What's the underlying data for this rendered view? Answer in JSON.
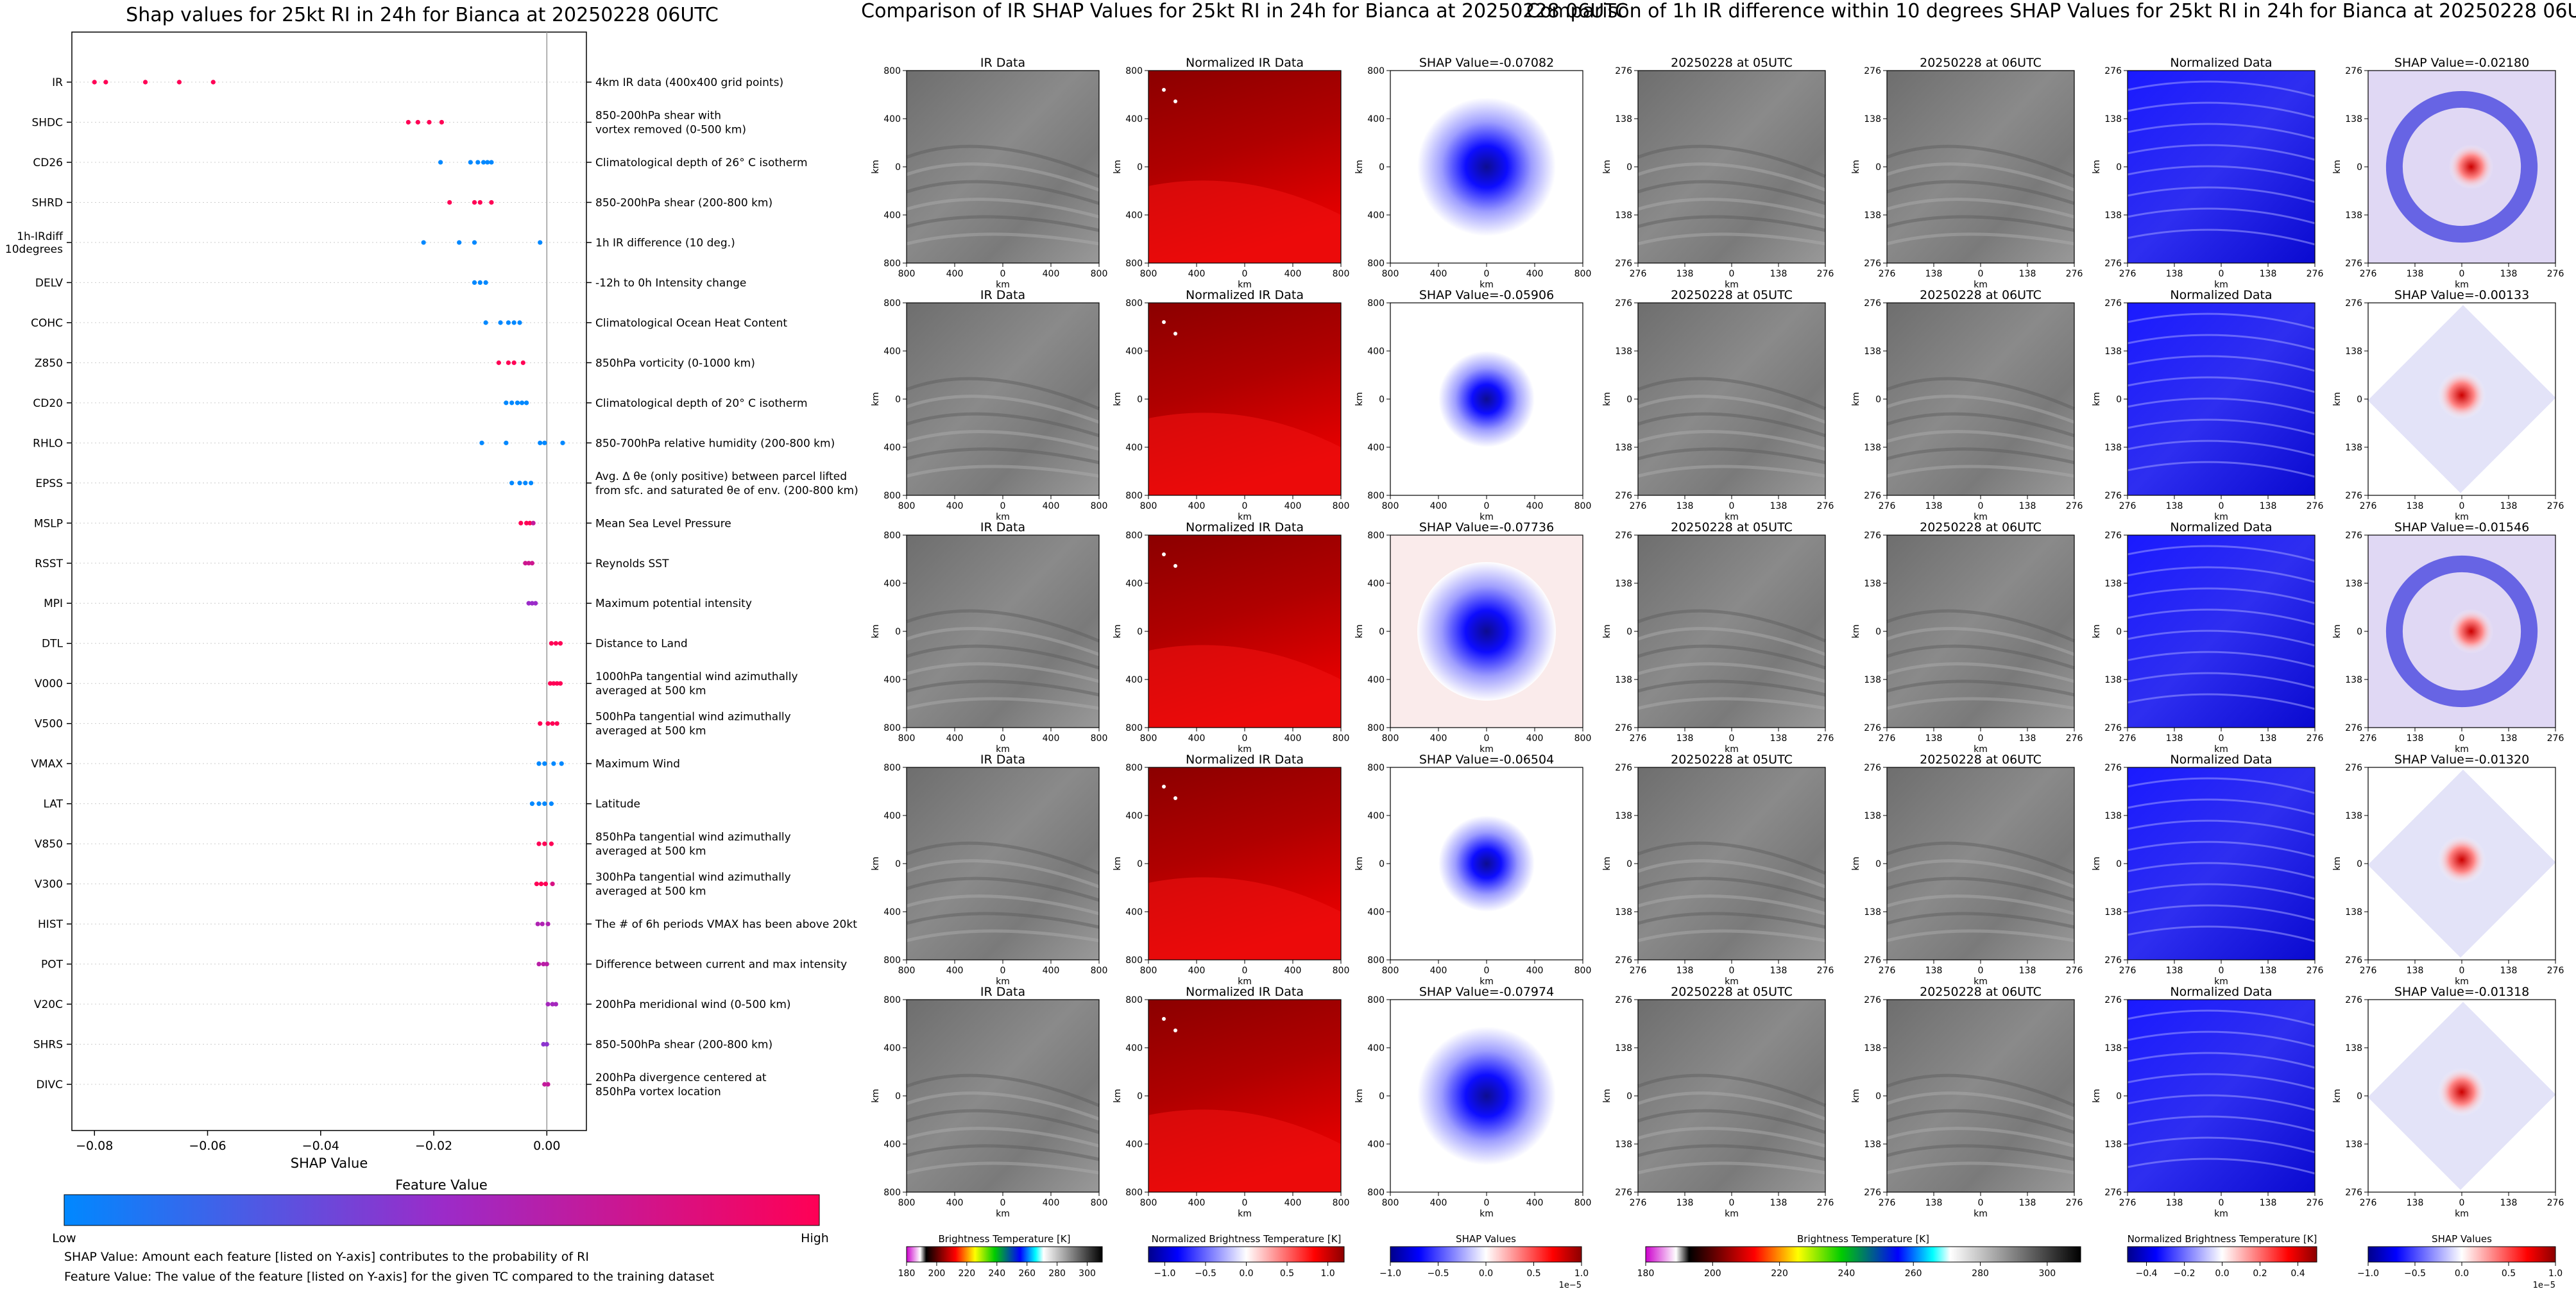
{
  "titles": {
    "left": "Shap values for 25kt RI in 24h for Bianca at 20250228 06UTC",
    "middle": "Comparison of IR SHAP Values for 25kt RI in 24h for Bianca at 20250228 06UTC",
    "right": "Comparison of 1h IR difference within 10 degrees SHAP Values for 25kt RI in 24h for Bianca at 20250228 06UTC"
  },
  "colors": {
    "low": "#0088ff",
    "mid": "#9b2bc9",
    "high": "#ff0055"
  },
  "chart_data": [
    {
      "type": "scatter",
      "title": "Shap values for 25kt RI in 24h for Bianca at 20250228 06UTC",
      "xlabel": "SHAP Value",
      "xlim": [
        -0.084,
        0.007
      ],
      "xticks": [
        -0.08,
        -0.06,
        -0.04,
        -0.02,
        0.0
      ],
      "xtick_labels": [
        "−0.08",
        "−0.06",
        "−0.04",
        "−0.02",
        "0.00"
      ],
      "colorbar": {
        "label": "Feature Value",
        "low": "Low",
        "high": "High"
      },
      "features": [
        {
          "name": "IR",
          "desc": "4km IR data (400x400 grid points)",
          "points": [
            [
              -0.08,
              1
            ],
            [
              -0.078,
              1
            ],
            [
              -0.071,
              1
            ],
            [
              -0.065,
              1
            ],
            [
              -0.059,
              1
            ]
          ]
        },
        {
          "name": "SHDC",
          "desc": "850-200hPa shear with\nvortex removed (0-500 km)",
          "points": [
            [
              -0.0245,
              1
            ],
            [
              -0.0228,
              1
            ],
            [
              -0.0208,
              1
            ],
            [
              -0.0186,
              1
            ]
          ]
        },
        {
          "name": "CD26",
          "desc": "Climatological depth of 26° C isotherm",
          "points": [
            [
              -0.0188,
              0
            ],
            [
              -0.0135,
              0
            ],
            [
              -0.0122,
              0
            ],
            [
              -0.0112,
              0
            ],
            [
              -0.0105,
              0
            ],
            [
              -0.0098,
              0
            ]
          ]
        },
        {
          "name": "SHRD",
          "desc": "850-200hPa shear (200-800 km)",
          "points": [
            [
              -0.0172,
              1
            ],
            [
              -0.0128,
              1
            ],
            [
              -0.0118,
              1
            ],
            [
              -0.0098,
              1
            ]
          ]
        },
        {
          "name": "1h-IRdiff\n10degrees",
          "desc": "1h IR difference (10 deg.)",
          "points": [
            [
              -0.0218,
              0
            ],
            [
              -0.0155,
              0
            ],
            [
              -0.0128,
              0
            ],
            [
              -0.0012,
              0
            ]
          ]
        },
        {
          "name": "DELV",
          "desc": "-12h to 0h Intensity change",
          "points": [
            [
              -0.0128,
              0
            ],
            [
              -0.0118,
              0
            ],
            [
              -0.0108,
              0
            ]
          ]
        },
        {
          "name": "COHC",
          "desc": "Climatological Ocean Heat Content",
          "points": [
            [
              -0.0108,
              0
            ],
            [
              -0.0082,
              0
            ],
            [
              -0.0068,
              0
            ],
            [
              -0.0058,
              0
            ],
            [
              -0.0048,
              0
            ]
          ]
        },
        {
          "name": "Z850",
          "desc": "850hPa vorticity (0-1000 km)",
          "points": [
            [
              -0.0085,
              1
            ],
            [
              -0.0068,
              1
            ],
            [
              -0.0058,
              1
            ],
            [
              -0.0042,
              1
            ]
          ]
        },
        {
          "name": "CD20",
          "desc": "Climatological depth of 20° C isotherm",
          "points": [
            [
              -0.0072,
              0
            ],
            [
              -0.0062,
              0
            ],
            [
              -0.0052,
              0
            ],
            [
              -0.0044,
              0
            ],
            [
              -0.0036,
              0
            ]
          ]
        },
        {
          "name": "RHLO",
          "desc": "850-700hPa relative humidity (200-800 km)",
          "points": [
            [
              -0.0115,
              0
            ],
            [
              -0.0072,
              0
            ],
            [
              -0.0012,
              0
            ],
            [
              -0.0004,
              0
            ],
            [
              0.0028,
              0
            ]
          ]
        },
        {
          "name": "EPSS",
          "desc": "Avg. Δ θe (only positive) between parcel lifted\nfrom sfc. and saturated θe of env. (200-800 km)",
          "points": [
            [
              -0.0062,
              0
            ],
            [
              -0.0048,
              0
            ],
            [
              -0.0038,
              0
            ],
            [
              -0.0028,
              0
            ]
          ]
        },
        {
          "name": "MSLP",
          "desc": "Mean Sea Level Pressure",
          "points": [
            [
              -0.0046,
              1
            ],
            [
              -0.0036,
              1
            ],
            [
              -0.003,
              1
            ],
            [
              -0.0024,
              0.7
            ]
          ]
        },
        {
          "name": "RSST",
          "desc": "Reynolds SST",
          "points": [
            [
              -0.0038,
              0.75
            ],
            [
              -0.0032,
              0.75
            ],
            [
              -0.0026,
              0.75
            ]
          ]
        },
        {
          "name": "MPI",
          "desc": "Maximum potential intensity",
          "points": [
            [
              -0.0032,
              0.5
            ],
            [
              -0.0026,
              0.5
            ],
            [
              -0.002,
              0.5
            ]
          ]
        },
        {
          "name": "DTL",
          "desc": "Distance to Land",
          "points": [
            [
              0.0008,
              1
            ],
            [
              0.0016,
              1
            ],
            [
              0.0024,
              1
            ]
          ]
        },
        {
          "name": "V000",
          "desc": "1000hPa tangential wind azimuthally\naveraged at 500 km",
          "points": [
            [
              0.0006,
              1
            ],
            [
              0.0012,
              1
            ],
            [
              0.0018,
              1
            ],
            [
              0.0024,
              1
            ]
          ]
        },
        {
          "name": "V500",
          "desc": "500hPa tangential wind azimuthally\naveraged at 500 km",
          "points": [
            [
              -0.0012,
              1
            ],
            [
              0.0002,
              1
            ],
            [
              0.001,
              1
            ],
            [
              0.0018,
              1
            ]
          ]
        },
        {
          "name": "VMAX",
          "desc": "Maximum Wind",
          "points": [
            [
              -0.0014,
              0
            ],
            [
              -0.0004,
              0
            ],
            [
              0.0012,
              0
            ],
            [
              0.0026,
              0
            ]
          ]
        },
        {
          "name": "LAT",
          "desc": "Latitude",
          "points": [
            [
              -0.0026,
              0
            ],
            [
              -0.0014,
              0
            ],
            [
              -0.0004,
              0
            ],
            [
              0.0008,
              0
            ]
          ]
        },
        {
          "name": "V850",
          "desc": "850hPa tangential wind azimuthally\naveraged at 500 km",
          "points": [
            [
              -0.0014,
              1
            ],
            [
              -0.0004,
              1
            ],
            [
              0.0008,
              1
            ]
          ]
        },
        {
          "name": "V300",
          "desc": "300hPa tangential wind azimuthally\naveraged at 500 km",
          "points": [
            [
              -0.0018,
              1
            ],
            [
              -0.001,
              1
            ],
            [
              -0.0002,
              1
            ],
            [
              0.001,
              0.8
            ]
          ]
        },
        {
          "name": "HIST",
          "desc": "The # of 6h periods VMAX has been above 20kt",
          "points": [
            [
              -0.0016,
              0.6
            ],
            [
              -0.0008,
              0.6
            ],
            [
              0.0002,
              0.6
            ]
          ]
        },
        {
          "name": "POT",
          "desc": "Difference between current and max intensity",
          "points": [
            [
              -0.0014,
              0.65
            ],
            [
              -0.0006,
              0.65
            ],
            [
              0.0,
              0.65
            ]
          ]
        },
        {
          "name": "V20C",
          "desc": "200hPa meridional wind (0-500 km)",
          "points": [
            [
              0.0002,
              0.55
            ],
            [
              0.001,
              0.55
            ],
            [
              0.0016,
              0.55
            ]
          ]
        },
        {
          "name": "SHRS",
          "desc": "850-500hPa shear (200-800 km)",
          "points": [
            [
              -0.0006,
              0.45
            ],
            [
              0.0,
              0.45
            ]
          ]
        },
        {
          "name": "DIVC",
          "desc": "200hPa divergence centered at\n850hPa vortex location",
          "points": [
            [
              -0.0004,
              0.7
            ],
            [
              0.0002,
              0.7
            ]
          ]
        }
      ]
    },
    {
      "type": "heatmap",
      "title": "Comparison of IR SHAP Values for 25kt RI in 24h for Bianca at 20250228 06UTC",
      "panel_titles": [
        "IR Data",
        "Normalized IR Data"
      ],
      "shap_titles": [
        "SHAP Value=-0.07082",
        "SHAP Value=-0.05906",
        "SHAP Value=-0.07736",
        "SHAP Value=-0.06504",
        "SHAP Value=-0.07974"
      ],
      "axis_label": "km",
      "yticks": [
        "800",
        "400",
        "0",
        "400",
        "800"
      ],
      "xticks": [
        "800",
        "400",
        "0",
        "400",
        "800"
      ],
      "colorbars": [
        {
          "label": "Brightness Temperature [K]",
          "ticks": [
            "180",
            "200",
            "220",
            "240",
            "260",
            "280",
            "300"
          ],
          "range": [
            180,
            310
          ]
        },
        {
          "label": "Normalized Brightness Temperature [K]",
          "ticks": [
            "−1.0",
            "−0.5",
            "0.0",
            "0.5",
            "1.0"
          ],
          "range": [
            -1.2,
            1.2
          ]
        },
        {
          "label": "SHAP Values",
          "ticks": [
            "−1.0",
            "−0.5",
            "0.0",
            "0.5",
            "1.0"
          ],
          "range": [
            -1,
            1
          ],
          "exponent": "1e−5"
        }
      ]
    },
    {
      "type": "heatmap",
      "title": "Comparison of 1h IR difference within 10 degrees SHAP Values for 25kt RI in 24h for Bianca at 20250228 06UTC",
      "panel_titles": [
        "20250228 at 05UTC",
        "20250228 at 06UTC",
        "Normalized Data"
      ],
      "shap_titles": [
        "SHAP Value=-0.02180",
        "SHAP Value=-0.00133",
        "SHAP Value=-0.01546",
        "SHAP Value=-0.01320",
        "SHAP Value=-0.01318"
      ],
      "axis_label": "km",
      "yticks": [
        "276",
        "138",
        "0",
        "138",
        "276"
      ],
      "xticks": [
        "276",
        "138",
        "0",
        "138",
        "276"
      ],
      "colorbars": [
        {
          "label": "Brightness Temperature [K]",
          "ticks": [
            "180",
            "200",
            "220",
            "240",
            "260",
            "280",
            "300"
          ],
          "range": [
            180,
            310
          ]
        },
        {
          "label": "Normalized Brightness Temperature [K]",
          "ticks": [
            "−0.4",
            "−0.2",
            "0.0",
            "0.2",
            "0.4"
          ],
          "range": [
            -0.5,
            0.5
          ]
        },
        {
          "label": "SHAP Values",
          "ticks": [
            "−1.0",
            "−0.5",
            "0.0",
            "0.5",
            "1.0"
          ],
          "range": [
            -1,
            1
          ],
          "exponent": "1e−5"
        }
      ]
    }
  ],
  "notes": [
    "SHAP Value: Amount each feature [listed on Y-axis] contributes to the probability of RI",
    "Feature Value: The value of the feature [listed on Y-axis] for the given TC compared to the training dataset"
  ]
}
